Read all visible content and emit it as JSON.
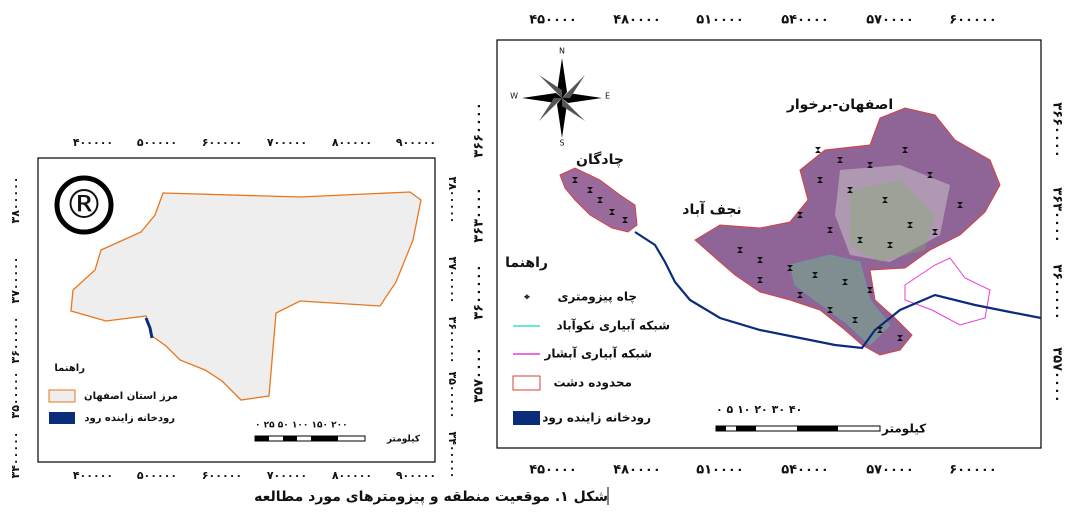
{
  "left_map": {
    "x_ticks": [
      "۴۰۰۰۰۰",
      "۵۰۰۰۰۰",
      "۶۰۰۰۰۰",
      "۷۰۰۰۰۰",
      "۸۰۰۰۰۰",
      "۹۰۰۰۰۰"
    ],
    "y_ticks": [
      "۳۸۰۰۰۰۰",
      "۳۷۰۰۰۰۰",
      "۳۶۰۰۰۰۰",
      "۳۵۰۰۰۰۰",
      "۳۴۰۰۰۰۰"
    ],
    "symbol": "®",
    "legend": {
      "title": "راهنما",
      "items": [
        "مرز استان اصفهان",
        "رودخانه زاینده رود"
      ]
    },
    "scale": {
      "numbers": "۰ ۲۵ ۵۰ ۱۰۰ ۱۵۰ ۲۰۰",
      "unit": "کیلومتر"
    }
  },
  "right_map": {
    "x_ticks": [
      "۴۵۰۰۰۰",
      "۴۸۰۰۰۰",
      "۵۱۰۰۰۰",
      "۵۴۰۰۰۰",
      "۵۷۰۰۰۰",
      "۶۰۰۰۰۰"
    ],
    "y_ticks": [
      "۳۶۶۰۰۰۰",
      "۳۶۳۰۰۰۰",
      "۳۶۰۰۰۰۰",
      "۳۵۷۰۰۰۰"
    ],
    "compass": {
      "n": "N",
      "s": "S",
      "e": "E",
      "w": "W"
    },
    "region_labels": [
      "اصفهان-برخوار",
      "چادگان",
      "نجف آباد"
    ],
    "legend": {
      "title": "راهنما",
      "items": [
        "چاه پیزومتری",
        "شبکه آبیاری نکوآباد",
        "شبکه آبیاری آبشار",
        "محدوده دشت",
        "رودخانه زاینده رود"
      ]
    },
    "scale": {
      "numbers": "۰ ۵ ۱۰ ۲۰ ۳۰ ۴۰",
      "unit": "کیلومتر"
    }
  },
  "caption": "شکل ۱. موقعیت منطقه و پیزومترهای مورد مطالعه"
}
